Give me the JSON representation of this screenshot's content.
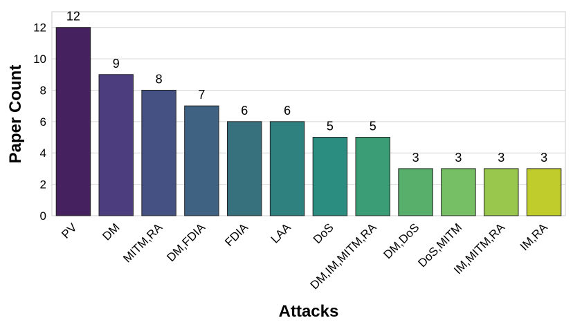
{
  "chart_data": {
    "type": "bar",
    "xlabel": "Attacks",
    "ylabel": "Paper Count",
    "ylim": [
      0,
      13
    ],
    "yticks": [
      0,
      2,
      4,
      6,
      8,
      10,
      12
    ],
    "grid": true,
    "categories": [
      "PV",
      "DM",
      "MITM,RA",
      "DM,FDIA",
      "FDIA",
      "LAA",
      "DoS",
      "DM,IM,MITM,RA",
      "DM,DoS",
      "DoS,MITM",
      "IM,MITM,RA",
      "IM,RA"
    ],
    "values": [
      12,
      9,
      8,
      7,
      6,
      6,
      5,
      5,
      3,
      3,
      3,
      3
    ],
    "colors": [
      "#46215f",
      "#4c3d7f",
      "#465183",
      "#3f6283",
      "#37717e",
      "#2f817f",
      "#2a8d80",
      "#3a9d76",
      "#58ae6b",
      "#76bf64",
      "#99c74d",
      "#bfcc2b"
    ]
  }
}
